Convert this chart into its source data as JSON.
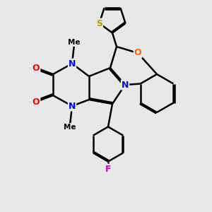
{
  "bg_color": "#e8e8e8",
  "line_color": "#000000",
  "line_width": 1.8,
  "atom_colors": {
    "N": "#0000ff",
    "O_carbonyl": "#ff0000",
    "O_ring": "#ff6600",
    "S": "#b8a000",
    "F": "#cc00cc",
    "C": "#000000"
  },
  "xlim": [
    0,
    10
  ],
  "ylim": [
    0,
    10
  ]
}
